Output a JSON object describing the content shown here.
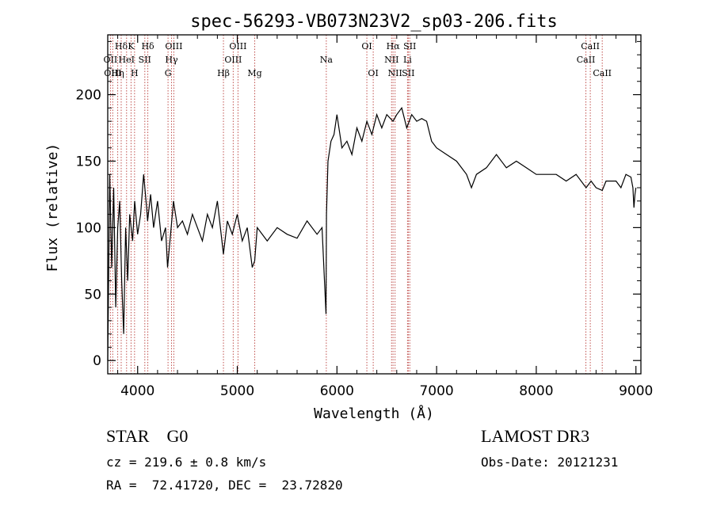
{
  "chart_data": {
    "type": "line",
    "title": "spec-56293-VB073N23V2_sp03-206.fits",
    "xlabel": "Wavelength (Å)",
    "ylabel": "Flux (relative)",
    "xlim": [
      3700,
      9050
    ],
    "ylim": [
      -10,
      245
    ],
    "xticks": [
      4000,
      5000,
      6000,
      7000,
      8000,
      9000
    ],
    "yticks": [
      0,
      50,
      100,
      150,
      200
    ],
    "grid": false,
    "line_color": "#000000",
    "marker_color": "#c0504d",
    "spectrum": {
      "x": [
        3700,
        3720,
        3740,
        3760,
        3780,
        3800,
        3820,
        3840,
        3860,
        3880,
        3900,
        3920,
        3950,
        3970,
        4000,
        4030,
        4060,
        4090,
        4100,
        4130,
        4160,
        4200,
        4240,
        4280,
        4300,
        4330,
        4360,
        4400,
        4450,
        4500,
        4550,
        4600,
        4650,
        4700,
        4750,
        4800,
        4861,
        4900,
        4950,
        5000,
        5050,
        5100,
        5150,
        5175,
        5200,
        5300,
        5400,
        5500,
        5600,
        5700,
        5800,
        5850,
        5890,
        5895,
        5910,
        5940,
        5970,
        6000,
        6050,
        6100,
        6150,
        6200,
        6250,
        6300,
        6350,
        6400,
        6450,
        6500,
        6563,
        6600,
        6650,
        6700,
        6750,
        6800,
        6850,
        6900,
        6950,
        7000,
        7100,
        7200,
        7300,
        7350,
        7400,
        7500,
        7600,
        7700,
        7800,
        7900,
        8000,
        8100,
        8200,
        8300,
        8400,
        8500,
        8550,
        8600,
        8662,
        8700,
        8800,
        8850,
        8900,
        8950,
        8970,
        8980,
        8990,
        9000
      ],
      "y": [
        0,
        140,
        70,
        130,
        40,
        100,
        120,
        60,
        20,
        100,
        60,
        110,
        90,
        120,
        95,
        110,
        140,
        115,
        105,
        125,
        100,
        120,
        90,
        100,
        70,
        95,
        120,
        100,
        105,
        95,
        110,
        100,
        90,
        110,
        100,
        120,
        80,
        105,
        95,
        110,
        90,
        100,
        70,
        75,
        100,
        90,
        100,
        95,
        92,
        105,
        95,
        100,
        35,
        110,
        150,
        165,
        170,
        185,
        160,
        165,
        155,
        175,
        165,
        180,
        170,
        185,
        175,
        185,
        180,
        185,
        190,
        175,
        185,
        180,
        182,
        180,
        165,
        160,
        155,
        150,
        140,
        130,
        140,
        145,
        155,
        145,
        150,
        145,
        140,
        140,
        140,
        135,
        140,
        130,
        135,
        130,
        128,
        135,
        135,
        130,
        140,
        138,
        130,
        115,
        125,
        130
      ]
    },
    "lines_row1": [
      {
        "label": "Hδ",
        "x": 3835
      },
      {
        "label": "K",
        "x": 3934
      },
      {
        "label": "Hδ",
        "x": 4102
      },
      {
        "label": "OIII",
        "x": 4363
      },
      {
        "label": "OIII",
        "x": 5007
      },
      {
        "label": "OI",
        "x": 6300
      },
      {
        "label": "Hα",
        "x": 6563
      },
      {
        "label": "SII",
        "x": 6731
      },
      {
        "label": "CaII",
        "x": 8542
      }
    ],
    "lines_row2": [
      {
        "label": "OII",
        "x": 3727
      },
      {
        "label": "HeI",
        "x": 3889
      },
      {
        "label": "SII",
        "x": 4072
      },
      {
        "label": "Hγ",
        "x": 4340
      },
      {
        "label": "OIII",
        "x": 4959
      },
      {
        "label": "Na",
        "x": 5893
      },
      {
        "label": "NII",
        "x": 6548
      },
      {
        "label": "Li",
        "x": 6708
      },
      {
        "label": "CaII",
        "x": 8498
      }
    ],
    "lines_row3": [
      {
        "label": "OIII",
        "x": 3750
      },
      {
        "label": "Hη",
        "x": 3800
      },
      {
        "label": "H",
        "x": 3969
      },
      {
        "label": "G",
        "x": 4305
      },
      {
        "label": "Hβ",
        "x": 4861
      },
      {
        "label": "Mg",
        "x": 5175
      },
      {
        "label": "OI",
        "x": 6364
      },
      {
        "label": "NII",
        "x": 6583
      },
      {
        "label": "SII",
        "x": 6716
      },
      {
        "label": "CaII",
        "x": 8662
      }
    ]
  },
  "info": {
    "class": "STAR    G0",
    "survey": "LAMOST DR3",
    "cz": "cz = 219.6 ± 0.8 km/s",
    "obs_date": "Obs-Date: 20121231",
    "radec": "RA =  72.41720, DEC =  23.72820"
  }
}
